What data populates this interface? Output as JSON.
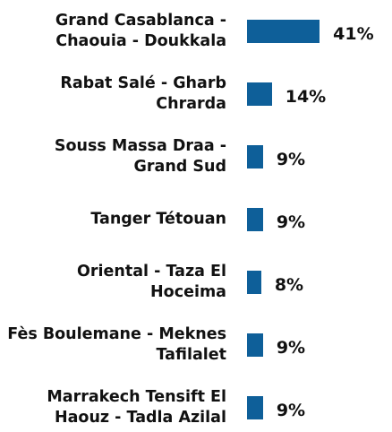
{
  "chart_data": {
    "type": "bar",
    "orientation": "horizontal",
    "categories": [
      "Grand Casablanca - Chaouia - Doukkala",
      "Rabat Salé - Gharb Chrarda",
      "Souss Massa Draa - Grand Sud",
      "Tanger Tétouan",
      "Oriental - Taza El Hoceima",
      "Fès Boulemane - Meknes Tafilalet",
      "Marrakech Tensift El Haouz - Tadla Azilal"
    ],
    "values": [
      41,
      14,
      9,
      9,
      8,
      9,
      9
    ],
    "value_labels": [
      "41%",
      "14%",
      "9%",
      "9%",
      "8%",
      "9%",
      "9%"
    ],
    "color": "#0e5f99"
  }
}
